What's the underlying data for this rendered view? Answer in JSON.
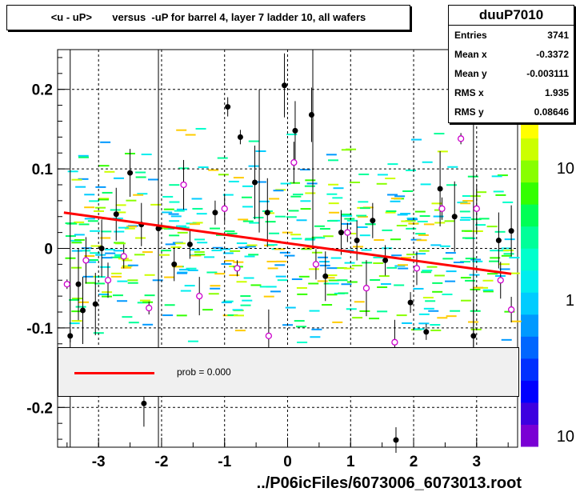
{
  "title": "<u - uP>       versus  -uP for barrel 4, layer 7 ladder 10, all wafers",
  "stats": {
    "name": "duuP7010",
    "rows": [
      {
        "label": "Entries",
        "value": "3741"
      },
      {
        "label": "Mean x",
        "value": "-0.3372"
      },
      {
        "label": "Mean y",
        "value": "-0.003111"
      },
      {
        "label": "RMS x",
        "value": "1.935"
      },
      {
        "label": "RMS y",
        "value": "0.08646"
      }
    ]
  },
  "legend": {
    "text": "prob = 0.000"
  },
  "footer": "../P06icFiles/6073006_6073013.root",
  "colors": {
    "fit": "#ff0000",
    "profile_marker": "#cc00cc",
    "points": "#000000"
  },
  "chart_data": {
    "type": "scatter",
    "title": "<u - uP>       versus  -uP for barrel 4, layer 7 ladder 10, all wafers",
    "xlabel": "",
    "ylabel": "",
    "xlim": [
      -3.65,
      3.65
    ],
    "ylim": [
      -0.25,
      0.25
    ],
    "x_ticks": [
      "-3",
      "-2",
      "-1",
      "0",
      "1",
      "2",
      "3"
    ],
    "y_ticks": [
      "-0.2",
      "-0.1",
      "0",
      "0.1",
      "0.2"
    ],
    "z_ticks": [
      "10",
      "1",
      "10"
    ],
    "grid": true,
    "fit_line": {
      "x": [
        -3.55,
        3.55
      ],
      "y": [
        0.045,
        -0.032
      ]
    },
    "black_points": [
      {
        "x": -3.45,
        "y": -0.11
      },
      {
        "x": -3.32,
        "y": -0.045
      },
      {
        "x": -3.25,
        "y": -0.078
      },
      {
        "x": -3.05,
        "y": -0.07
      },
      {
        "x": -2.95,
        "y": 0.0
      },
      {
        "x": -2.72,
        "y": 0.043
      },
      {
        "x": -2.5,
        "y": 0.095
      },
      {
        "x": -2.32,
        "y": 0.03
      },
      {
        "x": -2.05,
        "y": 0.025
      },
      {
        "x": -1.8,
        "y": -0.02
      },
      {
        "x": -1.55,
        "y": 0.005
      },
      {
        "x": -1.15,
        "y": 0.045
      },
      {
        "x": -0.95,
        "y": 0.178
      },
      {
        "x": -0.75,
        "y": 0.14
      },
      {
        "x": -0.52,
        "y": 0.083
      },
      {
        "x": -0.32,
        "y": 0.045
      },
      {
        "x": -0.05,
        "y": 0.205
      },
      {
        "x": 0.12,
        "y": 0.148
      },
      {
        "x": 0.38,
        "y": 0.168
      },
      {
        "x": 0.6,
        "y": -0.035
      },
      {
        "x": 0.85,
        "y": 0.02
      },
      {
        "x": 1.1,
        "y": 0.01
      },
      {
        "x": 1.35,
        "y": 0.035
      },
      {
        "x": 1.55,
        "y": -0.015
      },
      {
        "x": 1.72,
        "y": -0.241
      },
      {
        "x": 1.95,
        "y": -0.068
      },
      {
        "x": 2.2,
        "y": -0.105
      },
      {
        "x": 2.42,
        "y": 0.075
      },
      {
        "x": 2.65,
        "y": 0.04
      },
      {
        "x": 2.95,
        "y": -0.11
      },
      {
        "x": 3.1,
        "y": 0.205
      },
      {
        "x": 3.35,
        "y": 0.01
      },
      {
        "x": 3.55,
        "y": 0.022
      },
      {
        "x": -2.28,
        "y": -0.195
      }
    ],
    "profile_points": [
      {
        "x": -3.5,
        "y": -0.045
      },
      {
        "x": -3.2,
        "y": -0.015
      },
      {
        "x": -2.85,
        "y": -0.04
      },
      {
        "x": -2.6,
        "y": -0.01
      },
      {
        "x": -2.2,
        "y": -0.075
      },
      {
        "x": -1.65,
        "y": 0.08
      },
      {
        "x": -1.4,
        "y": -0.06
      },
      {
        "x": -1.0,
        "y": 0.05
      },
      {
        "x": -0.8,
        "y": -0.025
      },
      {
        "x": -0.3,
        "y": -0.11
      },
      {
        "x": 0.1,
        "y": 0.108
      },
      {
        "x": 0.45,
        "y": -0.02
      },
      {
        "x": 0.95,
        "y": 0.02
      },
      {
        "x": 1.25,
        "y": -0.05
      },
      {
        "x": 1.7,
        "y": -0.118
      },
      {
        "x": 2.05,
        "y": -0.025
      },
      {
        "x": 2.45,
        "y": 0.05
      },
      {
        "x": 2.75,
        "y": 0.138
      },
      {
        "x": 3.0,
        "y": 0.05
      },
      {
        "x": 3.38,
        "y": -0.04
      },
      {
        "x": 3.55,
        "y": -0.077
      }
    ]
  }
}
